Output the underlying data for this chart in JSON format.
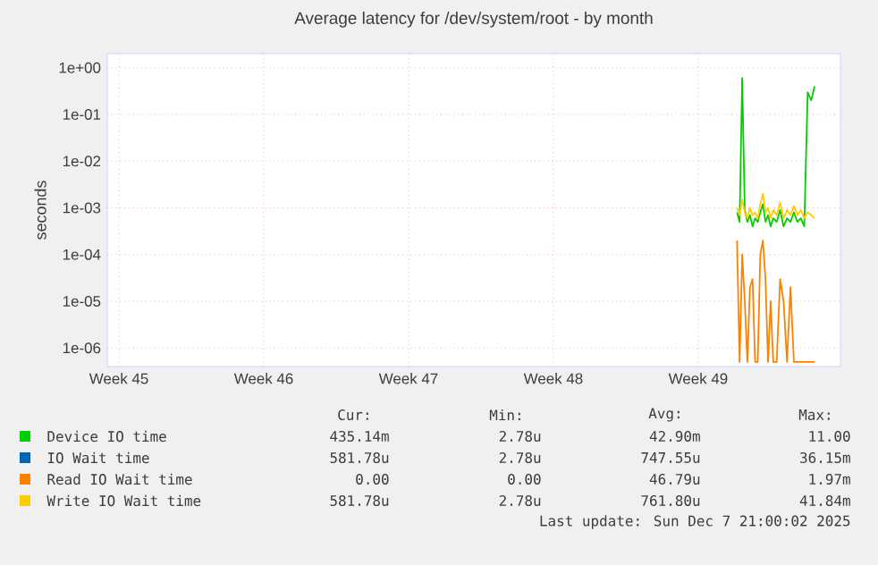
{
  "chart_data": {
    "type": "line",
    "title": "Average latency for /dev/system/root - by month",
    "ylabel": "seconds",
    "log": "y",
    "grid": true,
    "legend": "bottom",
    "xlim": [
      "2025-11-02T10:30",
      "2025-12-07T21:00"
    ],
    "xticks": [
      {
        "value": "2025-11-03",
        "label": "Week 45"
      },
      {
        "value": "2025-11-10",
        "label": "Week 46"
      },
      {
        "value": "2025-11-17",
        "label": "Week 47"
      },
      {
        "value": "2025-11-24",
        "label": "Week 48"
      },
      {
        "value": "2025-12-01",
        "label": "Week 49"
      }
    ],
    "ylim": [
      4e-07,
      2
    ],
    "yticks": [
      {
        "value": 1,
        "label": "1e+00"
      },
      {
        "value": 0.1,
        "label": "1e-01"
      },
      {
        "value": 0.01,
        "label": "1e-02"
      },
      {
        "value": 0.001,
        "label": "1e-03"
      },
      {
        "value": 0.0001,
        "label": "1e-04"
      },
      {
        "value": 1e-05,
        "label": "1e-05"
      },
      {
        "value": 1e-06,
        "label": "1e-06"
      }
    ],
    "x": [
      "2025-12-02T21:00",
      "2025-12-03T00:00",
      "2025-12-03T03:00",
      "2025-12-03T06:00",
      "2025-12-03T09:00",
      "2025-12-03T12:00",
      "2025-12-03T15:00",
      "2025-12-03T18:00",
      "2025-12-03T21:00",
      "2025-12-04T00:00",
      "2025-12-04T03:00",
      "2025-12-04T06:00",
      "2025-12-04T09:00",
      "2025-12-04T12:00",
      "2025-12-04T15:00",
      "2025-12-04T19:00",
      "2025-12-04T23:00",
      "2025-12-05T03:00",
      "2025-12-05T07:00",
      "2025-12-05T11:00",
      "2025-12-05T15:00",
      "2025-12-05T19:00",
      "2025-12-05T23:00",
      "2025-12-06T03:00",
      "2025-12-06T07:00",
      "2025-12-06T11:00",
      "2025-12-06T15:00"
    ],
    "series": [
      {
        "name": "Device IO time",
        "color": "#00cc00",
        "values": [
          0.0008,
          0.0005,
          0.6,
          0.0009,
          0.0005,
          0.0007,
          0.0004,
          0.0006,
          0.0005,
          0.0008,
          0.0012,
          0.0005,
          0.0007,
          0.0004,
          0.0006,
          0.0005,
          0.0009,
          0.0004,
          0.0006,
          0.0005,
          0.0008,
          0.0005,
          0.0006,
          0.0004,
          0.3,
          0.2,
          0.4
        ]
      },
      {
        "name": "IO Wait time",
        "color": "#0066b3",
        "values": [
          null,
          null,
          null,
          null,
          null,
          null,
          null,
          null,
          null,
          null,
          null,
          null,
          null,
          null,
          null,
          null,
          null,
          null,
          null,
          null,
          null,
          null,
          null,
          null,
          null,
          null,
          null
        ]
      },
      {
        "name": "Read IO Wait time",
        "color": "#ff8000",
        "values": [
          0.0002,
          5e-07,
          0.0001,
          1e-05,
          5e-07,
          2e-05,
          3e-05,
          5e-07,
          5e-07,
          0.0001,
          0.0002,
          3e-05,
          5e-07,
          1e-05,
          5e-07,
          5e-07,
          3e-05,
          1e-05,
          5e-07,
          2e-05,
          5e-07,
          5e-07,
          5e-07,
          5e-07,
          5e-07,
          5e-07,
          5e-07
        ]
      },
      {
        "name": "Write IO Wait time",
        "color": "#ffcc00",
        "values": [
          0.001,
          0.0007,
          0.0015,
          0.0008,
          0.0006,
          0.001,
          0.0007,
          0.0008,
          0.0006,
          0.0012,
          0.002,
          0.0008,
          0.001,
          0.0006,
          0.0009,
          0.0007,
          0.0013,
          0.0006,
          0.0009,
          0.0007,
          0.0011,
          0.0007,
          0.0009,
          0.0006,
          0.0008,
          0.0007,
          0.0006
        ]
      }
    ],
    "annotations": [
      "Cur:",
      "Min:",
      "Avg:",
      "Max:",
      "435.14m",
      "2.78u",
      "42.90m",
      "11.00",
      "581.78u",
      "2.78u",
      "747.55u",
      "36.15m",
      "0.00",
      "0.00",
      "46.79u",
      "1.97m",
      "581.78u",
      "2.78u",
      "761.80u",
      "41.84m",
      "Last update: Sun Dec  7 21:00:02 2025"
    ]
  }
}
